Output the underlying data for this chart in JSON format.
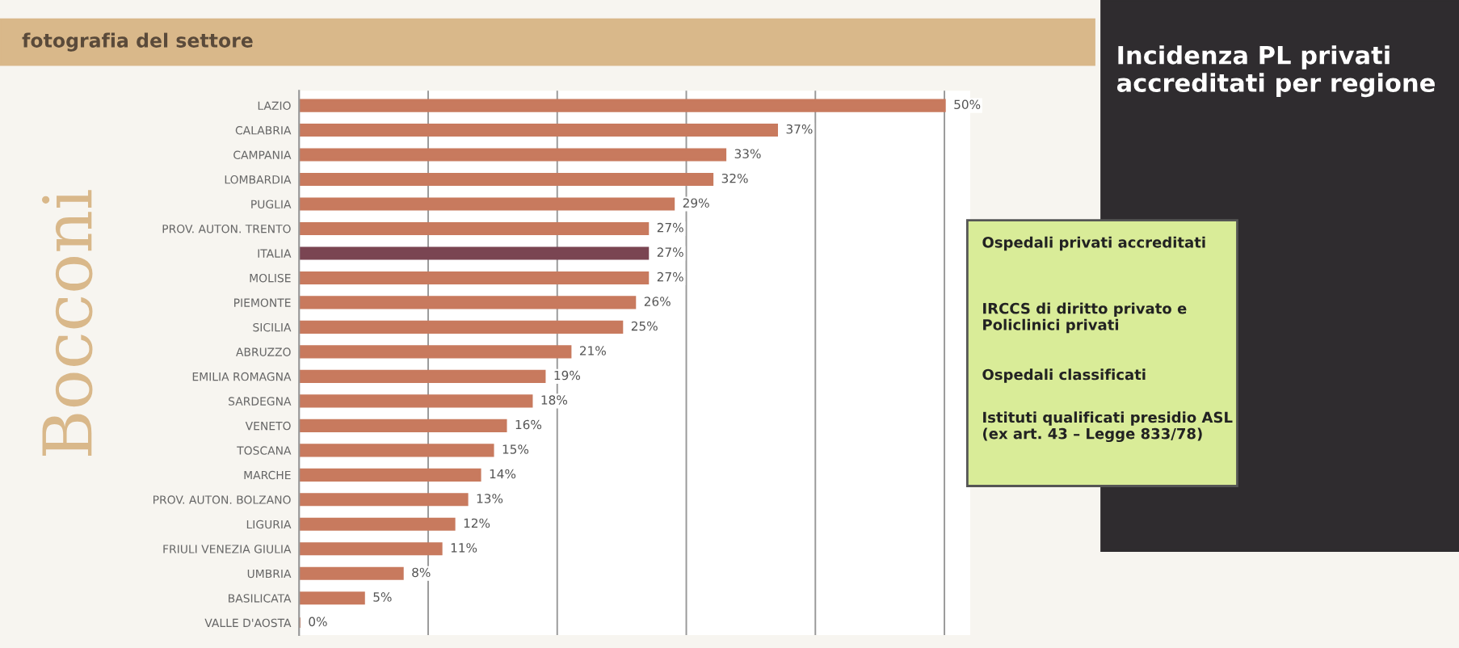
{
  "chart_data": {
    "type": "bar",
    "orientation": "horizontal",
    "title": "Incidenza PL privati accreditati per regione",
    "categories": [
      "LAZIO",
      "CALABRIA",
      "CAMPANIA",
      "LOMBARDIA",
      "PUGLIA",
      "PROV. AUTON. TRENTO",
      "ITALIA",
      "MOLISE",
      "PIEMONTE",
      "SICILIA",
      "ABRUZZO",
      "EMILIA ROMAGNA",
      "SARDEGNA",
      "VENETO",
      "TOSCANA",
      "MARCHE",
      "PROV. AUTON. BOLZANO",
      "LIGURIA",
      "FRIULI VENEZIA GIULIA",
      "UMBRIA",
      "BASILICATA",
      "VALLE D'AOSTA"
    ],
    "values": [
      50,
      37,
      33,
      32,
      29,
      27,
      27,
      27,
      26,
      25,
      21,
      19,
      18,
      16,
      15,
      14,
      13,
      12,
      11,
      8,
      5,
      0
    ],
    "value_labels": [
      "50%",
      "37%",
      "33%",
      "32%",
      "29%",
      "27%",
      "27%",
      "27%",
      "26%",
      "25%",
      "21%",
      "19%",
      "18%",
      "16%",
      "15%",
      "14%",
      "13%",
      "12%",
      "11%",
      "8%",
      "5%",
      "0%"
    ],
    "colors": [
      "#c87a5e",
      "#c87a5e",
      "#c87a5e",
      "#c87a5e",
      "#c87a5e",
      "#c87a5e",
      "#7a4552",
      "#c87a5e",
      "#c87a5e",
      "#c87a5e",
      "#c87a5e",
      "#c87a5e",
      "#c87a5e",
      "#c87a5e",
      "#c87a5e",
      "#c87a5e",
      "#c87a5e",
      "#c87a5e",
      "#c87a5e",
      "#c87a5e",
      "#c87a5e",
      "#c87a5e"
    ],
    "xlim": [
      0,
      52
    ],
    "xticks": [
      {
        "value": 10,
        "label": null
      },
      {
        "value": 20,
        "label": null
      },
      {
        "value": 30,
        "label": null
      },
      {
        "value": 40,
        "label": null
      },
      {
        "value": 50,
        "label": null
      }
    ],
    "grid": "x",
    "tick_labels": "y",
    "legend": false,
    "annotations": [
      "fotografia del settore",
      "Bocconi",
      "Ospedali privati accreditati",
      "IRCCS di diritto privato e Policlinici privati",
      "Ospedali classificati",
      "Istituti qualificati presidio ASL (ex art. 43 – Legge 833/78)"
    ]
  }
}
